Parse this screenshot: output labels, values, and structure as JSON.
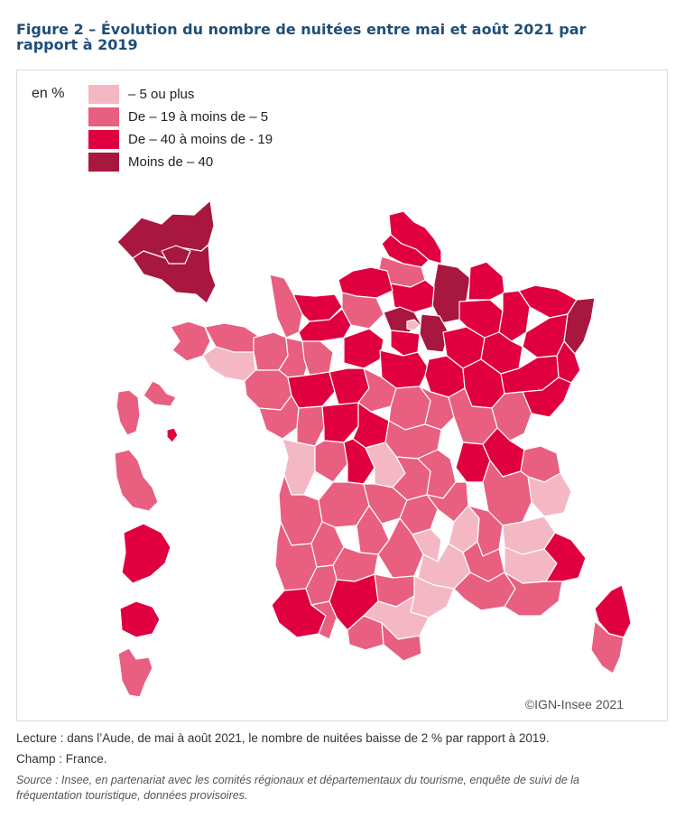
{
  "title": "Figure 2 – Évolution du nombre de nuitées entre mai et août 2021 par rapport à 2019",
  "legend": {
    "unit": "en %",
    "items": [
      {
        "label": "– 5 ou plus",
        "color": "#f4b8c4"
      },
      {
        "label": "De – 19 à moins de – 5",
        "color": "#e85f80"
      },
      {
        "label": "De – 40 à moins de - 19",
        "color": "#e00040"
      },
      {
        "label": "Moins de – 40",
        "color": "#a8173f"
      }
    ]
  },
  "map_colors": {
    "light": "#f4b8c4",
    "medium": "#e85f80",
    "strong": "#e00040",
    "dark": "#a8173f",
    "border": "#ffffff"
  },
  "copyright": "©IGN-Insee 2021",
  "notes": {
    "lecture": "Lecture : dans l’Aude, de mai à août 2021, le nombre de nuitées baisse de 2 % par rapport à 2019.",
    "champ": "Champ : France.",
    "source": "Source : Insee, en partenariat avec les comités régionaux et départementaux du tourisme, enquête de suivi de la fréquentation touristique, données provisoires."
  }
}
